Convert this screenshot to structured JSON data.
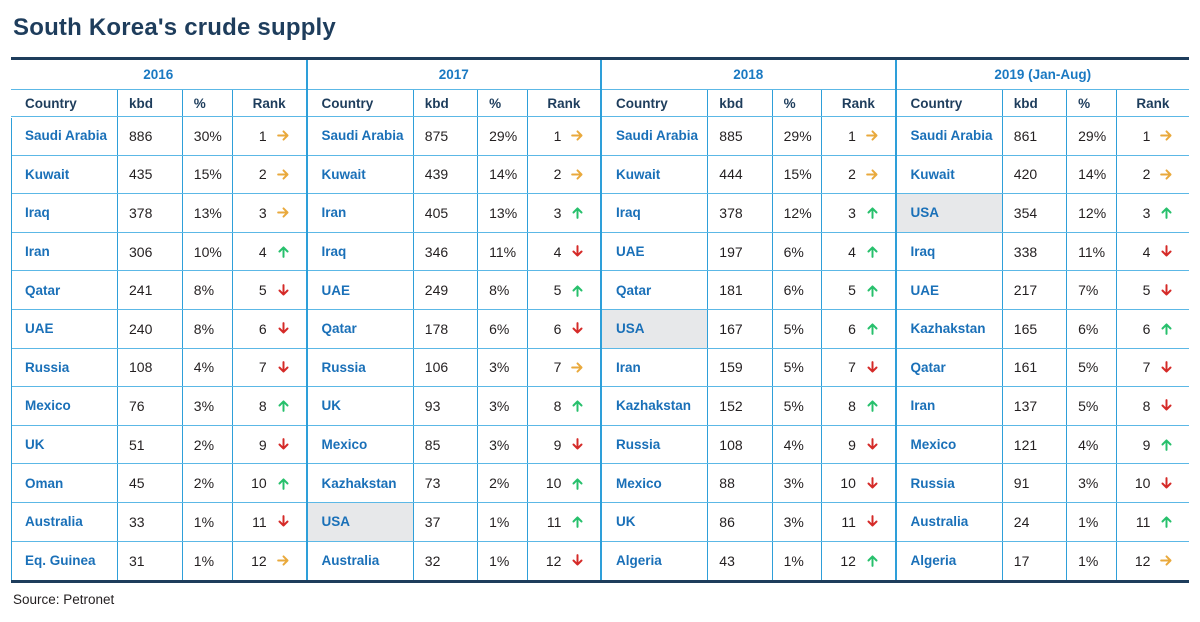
{
  "colors": {
    "navy": "#1e3d5c",
    "grid_vertical": "#2e9fd9",
    "grid_horizontal": "#5cb8e6",
    "country_blue": "#1a70b8",
    "year_blue": "#1a79c2",
    "value_black": "#231f20",
    "arrow_gold": "#e9a93c",
    "arrow_green": "#27c06c",
    "arrow_red": "#d52a28",
    "highlight_gray": "#e7e8ea"
  },
  "chart_data": {
    "type": "table",
    "title": "South Korea's crude supply",
    "source": "Source: Petronet",
    "units": "kbd",
    "columns": {
      "country": "Country",
      "kbd": "kbd",
      "pct": "%",
      "rank": "Rank"
    },
    "trend_legend": {
      "same": "rank unchanged (gold right arrow)",
      "up": "rank improved (green up arrow)",
      "down": "rank fell (red down arrow)"
    },
    "tables": [
      {
        "label": "2016",
        "rows": [
          {
            "country": "Saudi Arabia",
            "kbd": "886",
            "pct": "30%",
            "rank": "1",
            "trend": "same",
            "highlight": false
          },
          {
            "country": "Kuwait",
            "kbd": "435",
            "pct": "15%",
            "rank": "2",
            "trend": "same",
            "highlight": false
          },
          {
            "country": "Iraq",
            "kbd": "378",
            "pct": "13%",
            "rank": "3",
            "trend": "same",
            "highlight": false
          },
          {
            "country": "Iran",
            "kbd": "306",
            "pct": "10%",
            "rank": "4",
            "trend": "up",
            "highlight": false
          },
          {
            "country": "Qatar",
            "kbd": "241",
            "pct": "8%",
            "rank": "5",
            "trend": "down",
            "highlight": false
          },
          {
            "country": "UAE",
            "kbd": "240",
            "pct": "8%",
            "rank": "6",
            "trend": "down",
            "highlight": false
          },
          {
            "country": "Russia",
            "kbd": "108",
            "pct": "4%",
            "rank": "7",
            "trend": "down",
            "highlight": false
          },
          {
            "country": "Mexico",
            "kbd": "76",
            "pct": "3%",
            "rank": "8",
            "trend": "up",
            "highlight": false
          },
          {
            "country": "UK",
            "kbd": "51",
            "pct": "2%",
            "rank": "9",
            "trend": "down",
            "highlight": false
          },
          {
            "country": "Oman",
            "kbd": "45",
            "pct": "2%",
            "rank": "10",
            "trend": "up",
            "highlight": false
          },
          {
            "country": "Australia",
            "kbd": "33",
            "pct": "1%",
            "rank": "11",
            "trend": "down",
            "highlight": false
          },
          {
            "country": "Eq. Guinea",
            "kbd": "31",
            "pct": "1%",
            "rank": "12",
            "trend": "same",
            "highlight": false
          }
        ]
      },
      {
        "label": "2017",
        "rows": [
          {
            "country": "Saudi Arabia",
            "kbd": "875",
            "pct": "29%",
            "rank": "1",
            "trend": "same",
            "highlight": false
          },
          {
            "country": "Kuwait",
            "kbd": "439",
            "pct": "14%",
            "rank": "2",
            "trend": "same",
            "highlight": false
          },
          {
            "country": "Iran",
            "kbd": "405",
            "pct": "13%",
            "rank": "3",
            "trend": "up",
            "highlight": false
          },
          {
            "country": "Iraq",
            "kbd": "346",
            "pct": "11%",
            "rank": "4",
            "trend": "down",
            "highlight": false
          },
          {
            "country": "UAE",
            "kbd": "249",
            "pct": "8%",
            "rank": "5",
            "trend": "up",
            "highlight": false
          },
          {
            "country": "Qatar",
            "kbd": "178",
            "pct": "6%",
            "rank": "6",
            "trend": "down",
            "highlight": false
          },
          {
            "country": "Russia",
            "kbd": "106",
            "pct": "3%",
            "rank": "7",
            "trend": "same",
            "highlight": false
          },
          {
            "country": "UK",
            "kbd": "93",
            "pct": "3%",
            "rank": "8",
            "trend": "up",
            "highlight": false
          },
          {
            "country": "Mexico",
            "kbd": "85",
            "pct": "3%",
            "rank": "9",
            "trend": "down",
            "highlight": false
          },
          {
            "country": "Kazhakstan",
            "kbd": "73",
            "pct": "2%",
            "rank": "10",
            "trend": "up",
            "highlight": false
          },
          {
            "country": "USA",
            "kbd": "37",
            "pct": "1%",
            "rank": "11",
            "trend": "up",
            "highlight": true
          },
          {
            "country": "Australia",
            "kbd": "32",
            "pct": "1%",
            "rank": "12",
            "trend": "down",
            "highlight": false
          }
        ]
      },
      {
        "label": "2018",
        "rows": [
          {
            "country": "Saudi Arabia",
            "kbd": "885",
            "pct": "29%",
            "rank": "1",
            "trend": "same",
            "highlight": false
          },
          {
            "country": "Kuwait",
            "kbd": "444",
            "pct": "15%",
            "rank": "2",
            "trend": "same",
            "highlight": false
          },
          {
            "country": "Iraq",
            "kbd": "378",
            "pct": "12%",
            "rank": "3",
            "trend": "up",
            "highlight": false
          },
          {
            "country": "UAE",
            "kbd": "197",
            "pct": "6%",
            "rank": "4",
            "trend": "up",
            "highlight": false
          },
          {
            "country": "Qatar",
            "kbd": "181",
            "pct": "6%",
            "rank": "5",
            "trend": "up",
            "highlight": false
          },
          {
            "country": "USA",
            "kbd": "167",
            "pct": "5%",
            "rank": "6",
            "trend": "up",
            "highlight": true
          },
          {
            "country": "Iran",
            "kbd": "159",
            "pct": "5%",
            "rank": "7",
            "trend": "down",
            "highlight": false
          },
          {
            "country": "Kazhakstan",
            "kbd": "152",
            "pct": "5%",
            "rank": "8",
            "trend": "up",
            "highlight": false
          },
          {
            "country": "Russia",
            "kbd": "108",
            "pct": "4%",
            "rank": "9",
            "trend": "down",
            "highlight": false
          },
          {
            "country": "Mexico",
            "kbd": "88",
            "pct": "3%",
            "rank": "10",
            "trend": "down",
            "highlight": false
          },
          {
            "country": "UK",
            "kbd": "86",
            "pct": "3%",
            "rank": "11",
            "trend": "down",
            "highlight": false
          },
          {
            "country": "Algeria",
            "kbd": "43",
            "pct": "1%",
            "rank": "12",
            "trend": "up",
            "highlight": false
          }
        ]
      },
      {
        "label": "2019 (Jan-Aug)",
        "rows": [
          {
            "country": "Saudi Arabia",
            "kbd": "861",
            "pct": "29%",
            "rank": "1",
            "trend": "same",
            "highlight": false
          },
          {
            "country": "Kuwait",
            "kbd": "420",
            "pct": "14%",
            "rank": "2",
            "trend": "same",
            "highlight": false
          },
          {
            "country": "USA",
            "kbd": "354",
            "pct": "12%",
            "rank": "3",
            "trend": "up",
            "highlight": true
          },
          {
            "country": "Iraq",
            "kbd": "338",
            "pct": "11%",
            "rank": "4",
            "trend": "down",
            "highlight": false
          },
          {
            "country": "UAE",
            "kbd": "217",
            "pct": "7%",
            "rank": "5",
            "trend": "down",
            "highlight": false
          },
          {
            "country": "Kazhakstan",
            "kbd": "165",
            "pct": "6%",
            "rank": "6",
            "trend": "up",
            "highlight": false
          },
          {
            "country": "Qatar",
            "kbd": "161",
            "pct": "5%",
            "rank": "7",
            "trend": "down",
            "highlight": false
          },
          {
            "country": "Iran",
            "kbd": "137",
            "pct": "5%",
            "rank": "8",
            "trend": "down",
            "highlight": false
          },
          {
            "country": "Mexico",
            "kbd": "121",
            "pct": "4%",
            "rank": "9",
            "trend": "up",
            "highlight": false
          },
          {
            "country": "Russia",
            "kbd": "91",
            "pct": "3%",
            "rank": "10",
            "trend": "down",
            "highlight": false
          },
          {
            "country": "Australia",
            "kbd": "24",
            "pct": "1%",
            "rank": "11",
            "trend": "up",
            "highlight": false
          },
          {
            "country": "Algeria",
            "kbd": "17",
            "pct": "1%",
            "rank": "12",
            "trend": "same",
            "highlight": false
          }
        ]
      }
    ]
  }
}
